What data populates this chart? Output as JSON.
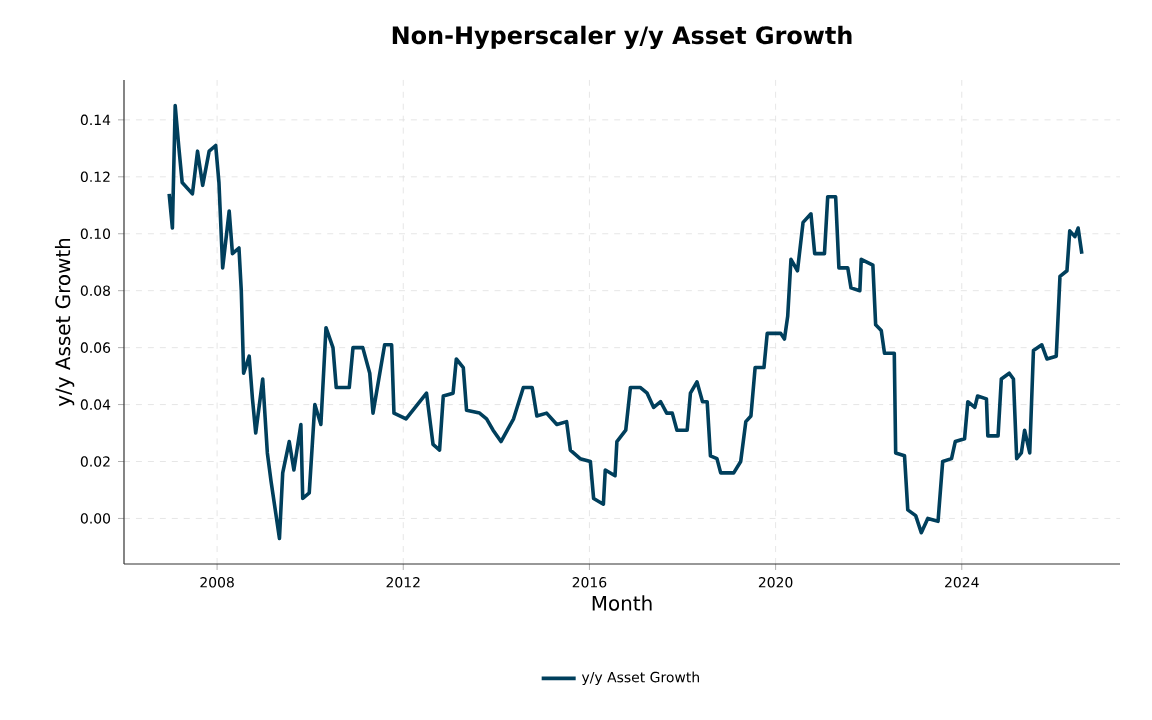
{
  "chart_data": {
    "type": "line",
    "title": "Non-Hyperscaler y/y Asset Growth",
    "xlabel": "Month",
    "ylabel": "y/y Asset Growth",
    "xlim": [
      2006,
      2027.4
    ],
    "ylim": [
      -0.016,
      0.154
    ],
    "xticks": [
      2008,
      2012,
      2016,
      2020,
      2024
    ],
    "yticks": [
      {
        "value": 0,
        "label": "0.00"
      },
      {
        "value": 0.02,
        "label": "0.02"
      },
      {
        "value": 0.04,
        "label": "0.04"
      },
      {
        "value": 0.06,
        "label": "0.06"
      },
      {
        "value": 0.08,
        "label": "0.08"
      },
      {
        "value": 0.1,
        "label": "0.10"
      },
      {
        "value": 0.12,
        "label": "0.12"
      },
      {
        "value": 0.14,
        "label": "0.14"
      }
    ],
    "grid": true,
    "legend": "bottom",
    "line_style": "solid",
    "series": [
      {
        "name": "y/y Asset Growth",
        "color": "#003f5c",
        "x": [
          2006.97,
          2007.04,
          2007.1,
          2007.18,
          2007.25,
          2007.47,
          2007.58,
          2007.69,
          2007.83,
          2007.97,
          2008.04,
          2008.12,
          2008.26,
          2008.33,
          2008.47,
          2008.52,
          2008.57,
          2008.69,
          2008.76,
          2008.83,
          2008.98,
          2009.08,
          2009.16,
          2009.34,
          2009.41,
          2009.55,
          2009.65,
          2009.8,
          2009.84,
          2009.98,
          2010.1,
          2010.23,
          2010.34,
          2010.49,
          2010.56,
          2010.84,
          2010.92,
          2011.13,
          2011.28,
          2011.35,
          2011.6,
          2011.75,
          2011.8,
          2012.06,
          2012.5,
          2012.64,
          2012.78,
          2012.86,
          2013.07,
          2013.14,
          2013.29,
          2013.36,
          2013.64,
          2013.79,
          2013.93,
          2014.1,
          2014.37,
          2014.58,
          2014.77,
          2014.87,
          2015.08,
          2015.3,
          2015.51,
          2015.59,
          2015.8,
          2016.02,
          2016.09,
          2016.3,
          2016.34,
          2016.55,
          2016.59,
          2016.78,
          2016.88,
          2017.09,
          2017.24,
          2017.38,
          2017.53,
          2017.66,
          2017.78,
          2017.88,
          2018.1,
          2018.17,
          2018.31,
          2018.43,
          2018.53,
          2018.6,
          2018.74,
          2018.82,
          2019.1,
          2019.25,
          2019.36,
          2019.47,
          2019.56,
          2019.75,
          2019.82,
          2020.11,
          2020.19,
          2020.26,
          2020.33,
          2020.47,
          2020.59,
          2020.76,
          2020.84,
          2021.05,
          2021.12,
          2021.29,
          2021.36,
          2021.55,
          2021.62,
          2021.81,
          2021.84,
          2022.09,
          2022.15,
          2022.27,
          2022.34,
          2022.55,
          2022.58,
          2022.77,
          2022.84,
          2023.01,
          2023.13,
          2023.27,
          2023.49,
          2023.59,
          2023.78,
          2023.86,
          2024.06,
          2024.13,
          2024.28,
          2024.34,
          2024.53,
          2024.56,
          2024.78,
          2024.85,
          2025.02,
          2025.11,
          2025.18,
          2025.28,
          2025.35,
          2025.46,
          2025.54,
          2025.72,
          2025.83,
          2026.03,
          2026.11,
          2026.26,
          2026.32,
          2026.43,
          2026.5,
          2026.58
        ],
        "values": [
          0.114,
          0.102,
          0.145,
          0.13,
          0.118,
          0.114,
          0.129,
          0.117,
          0.129,
          0.131,
          0.118,
          0.088,
          0.108,
          0.093,
          0.095,
          0.08,
          0.051,
          0.057,
          0.042,
          0.03,
          0.049,
          0.023,
          0.013,
          -0.007,
          0.016,
          0.027,
          0.017,
          0.033,
          0.007,
          0.009,
          0.04,
          0.033,
          0.067,
          0.06,
          0.046,
          0.046,
          0.06,
          0.06,
          0.051,
          0.037,
          0.061,
          0.061,
          0.037,
          0.035,
          0.044,
          0.026,
          0.024,
          0.043,
          0.044,
          0.056,
          0.053,
          0.038,
          0.037,
          0.035,
          0.031,
          0.027,
          0.035,
          0.046,
          0.046,
          0.036,
          0.037,
          0.033,
          0.034,
          0.024,
          0.021,
          0.02,
          0.007,
          0.005,
          0.017,
          0.015,
          0.027,
          0.031,
          0.046,
          0.046,
          0.044,
          0.039,
          0.041,
          0.037,
          0.037,
          0.031,
          0.031,
          0.044,
          0.048,
          0.041,
          0.041,
          0.022,
          0.021,
          0.016,
          0.016,
          0.02,
          0.034,
          0.036,
          0.053,
          0.053,
          0.065,
          0.065,
          0.063,
          0.071,
          0.091,
          0.087,
          0.104,
          0.107,
          0.093,
          0.093,
          0.113,
          0.113,
          0.088,
          0.088,
          0.081,
          0.08,
          0.091,
          0.089,
          0.068,
          0.066,
          0.058,
          0.058,
          0.023,
          0.022,
          0.003,
          0.001,
          -0.005,
          0.0,
          -0.001,
          0.02,
          0.021,
          0.027,
          0.028,
          0.041,
          0.039,
          0.043,
          0.042,
          0.029,
          0.029,
          0.049,
          0.051,
          0.049,
          0.021,
          0.023,
          0.031,
          0.023,
          0.059,
          0.061,
          0.056,
          0.057,
          0.085,
          0.087,
          0.101,
          0.099,
          0.102,
          0.093
        ]
      }
    ]
  }
}
